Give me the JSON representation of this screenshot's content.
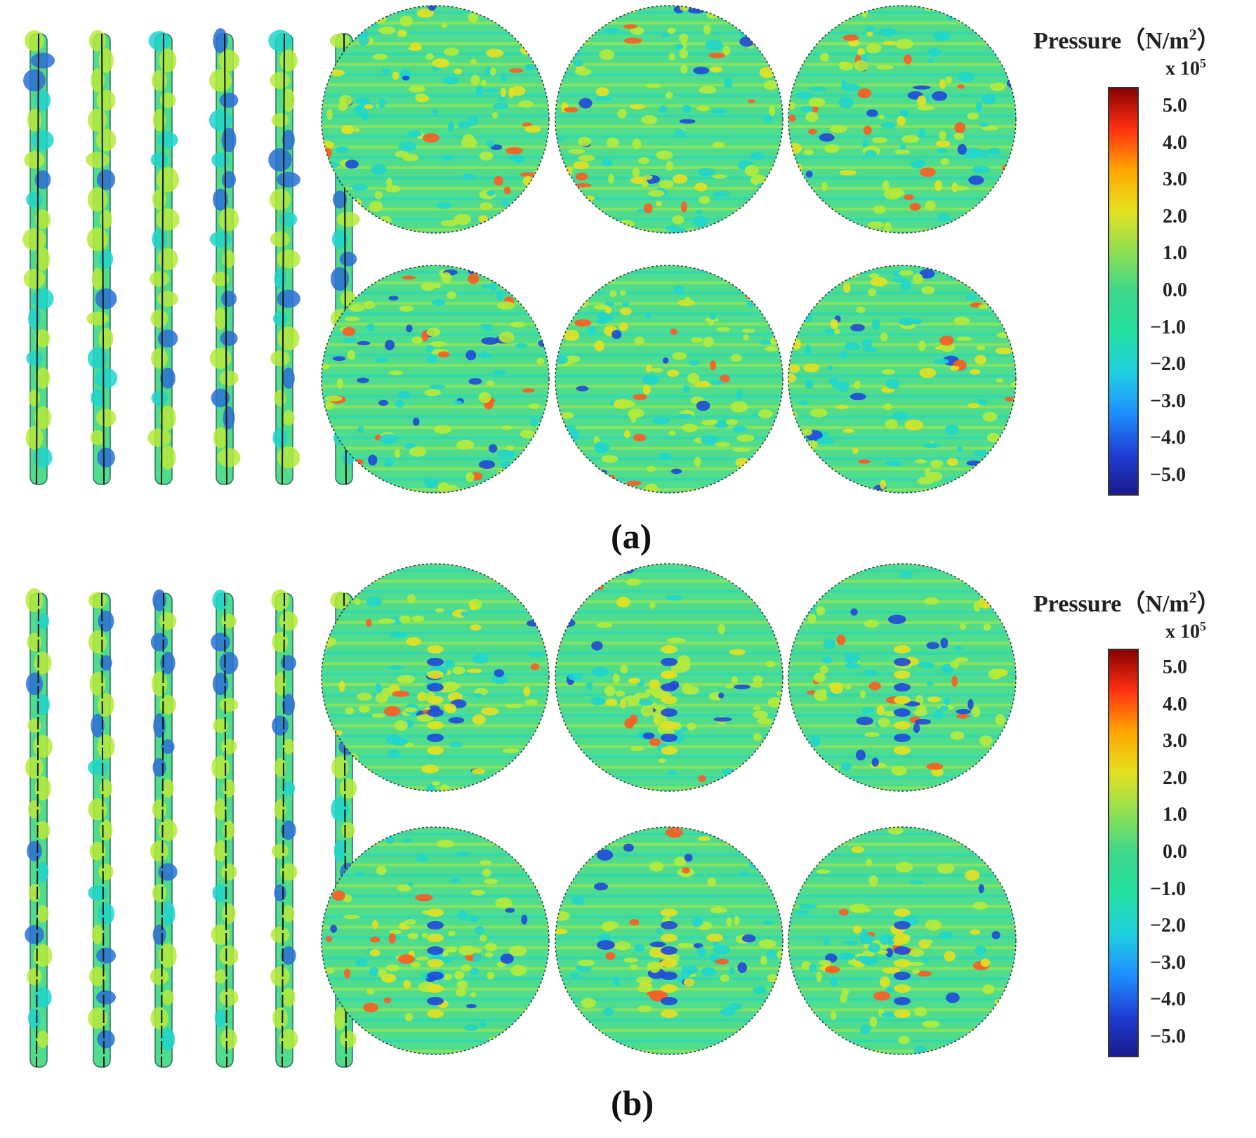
{
  "panels": [
    {
      "label": "(a)",
      "pattern": "dense",
      "colorbar": {
        "title_main": "Pressure",
        "title_units_pre": "（N/m",
        "title_units_exp": "2",
        "title_units_post": "）",
        "multiplier_base": "x 10",
        "multiplier_exp": "5",
        "ticks": [
          "5.0",
          "4.0",
          "3.0",
          "2.0",
          "1.0",
          "0.0",
          "−1.0",
          "−2.0",
          "−3.0",
          "−4.0",
          "−5.0"
        ]
      }
    },
    {
      "label": "(b)",
      "pattern": "radial",
      "colorbar": {
        "title_main": "Pressure",
        "title_units_pre": "（N/m",
        "title_units_exp": "2",
        "title_units_post": "）",
        "multiplier_base": "x 10",
        "multiplier_exp": "5",
        "ticks": [
          "5.0",
          "4.0",
          "3.0",
          "2.0",
          "1.0",
          "0.0",
          "−1.0",
          "−2.0",
          "−3.0",
          "−4.0",
          "−5.0"
        ]
      }
    }
  ],
  "colors": {
    "colormap": [
      "#1a1a8c",
      "#1f3fd6",
      "#1e90ff",
      "#20d0e0",
      "#22e0a0",
      "#3ed88a",
      "#8ee050",
      "#e6e020",
      "#ffa500",
      "#ff3010",
      "#8b0000"
    ],
    "background_field": "#4fdc8c",
    "wave_light": "#b6ea3a",
    "wave_dark": "#1fd5cc"
  }
}
